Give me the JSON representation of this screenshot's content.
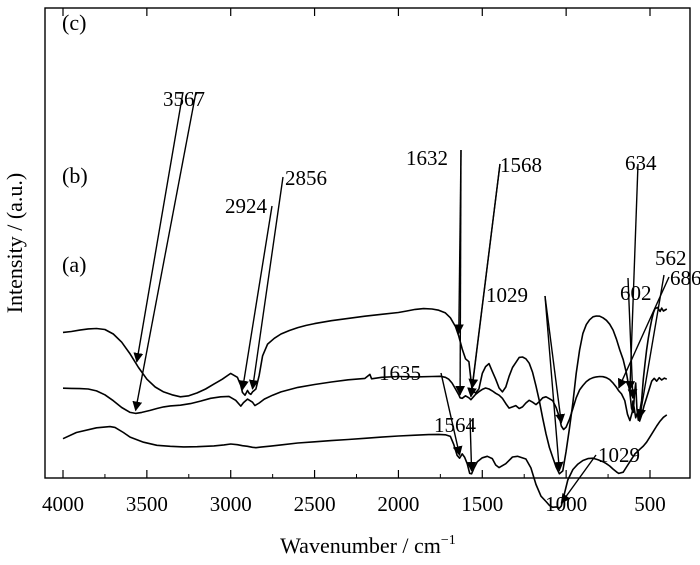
{
  "chart_data": {
    "type": "line",
    "xlabel": "Wavenumber / cm",
    "xlabel_sup": "−1",
    "ylabel": "Intensity / (a.u.)",
    "xlim": [
      4000,
      400
    ],
    "x_ticks": [
      4000,
      3500,
      3000,
      2500,
      2000,
      1500,
      1000,
      500
    ],
    "y_ticks_shown": false,
    "series": [
      {
        "name": "(a)",
        "offset": 0,
        "x": [
          4000,
          3920,
          3800,
          3720,
          3690,
          3640,
          3600,
          3520,
          3440,
          3360,
          3280,
          3200,
          3100,
          3040,
          3000,
          2960,
          2930,
          2900,
          2870,
          2850,
          2820,
          2760,
          2700,
          2600,
          2500,
          2400,
          2300,
          2200,
          2100,
          2000,
          1900,
          1820,
          1760,
          1720,
          1690,
          1670,
          1650,
          1635,
          1620,
          1605,
          1590,
          1575,
          1564,
          1550,
          1530,
          1500,
          1470,
          1440,
          1420,
          1400,
          1360,
          1320,
          1290,
          1240,
          1210,
          1180,
          1150,
          1120,
          1100,
          1080,
          1060,
          1040,
          1029,
          1010,
          990,
          960,
          930,
          900,
          870,
          840,
          810,
          780,
          760,
          740,
          720,
          700,
          686,
          660,
          640,
          620,
          600,
          590,
          575,
          560,
          540,
          520,
          500,
          480,
          460,
          440,
          420,
          400
        ],
        "y": [
          1.4,
          1.72,
          1.96,
          2.02,
          1.98,
          1.72,
          1.48,
          1.22,
          1.06,
          1.01,
          0.98,
          0.99,
          1.03,
          1.08,
          1.13,
          1.09,
          1.04,
          1.01,
          0.96,
          0.94,
          0.97,
          1.02,
          1.08,
          1.18,
          1.24,
          1.3,
          1.36,
          1.42,
          1.48,
          1.54,
          1.58,
          1.61,
          1.62,
          1.6,
          1.52,
          1.1,
          0.55,
          0.4,
          0.62,
          0.44,
          0.12,
          -0.38,
          -0.4,
          -0.12,
          0.22,
          0.42,
          0.5,
          0.38,
          0.05,
          -0.08,
          0.12,
          0.46,
          0.5,
          0.36,
          -0.1,
          -0.95,
          -1.55,
          -1.82,
          -2.02,
          -2.12,
          -2.1,
          -2.16,
          -2.05,
          -1.4,
          -0.72,
          -0.18,
          0.1,
          0.28,
          0.38,
          0.4,
          0.32,
          0.22,
          0.12,
          0.0,
          -0.16,
          -0.3,
          -0.38,
          -0.32,
          -0.05,
          0.22,
          0.48,
          0.62,
          0.74,
          0.86,
          1.02,
          1.22,
          1.5,
          1.78,
          2.05,
          2.3,
          2.5,
          2.62
        ]
      },
      {
        "name": "(b)",
        "offset": 3.55,
        "x": [
          4000,
          3950,
          3900,
          3850,
          3800,
          3750,
          3700,
          3650,
          3600,
          3567,
          3530,
          3480,
          3440,
          3400,
          3360,
          3300,
          3240,
          3180,
          3120,
          3060,
          3010,
          2970,
          2940,
          2924,
          2900,
          2870,
          2856,
          2830,
          2800,
          2750,
          2700,
          2600,
          2500,
          2400,
          2300,
          2200,
          2170,
          2160,
          2100,
          2000,
          1900,
          1800,
          1750,
          1720,
          1700,
          1680,
          1660,
          1640,
          1632,
          1620,
          1600,
          1580,
          1568,
          1555,
          1540,
          1520,
          1500,
          1480,
          1460,
          1440,
          1420,
          1400,
          1380,
          1360,
          1340,
          1320,
          1300,
          1280,
          1260,
          1240,
          1220,
          1200,
          1180,
          1160,
          1140,
          1120,
          1100,
          1080,
          1060,
          1040,
          1029,
          1015,
          1000,
          980,
          960,
          940,
          920,
          900,
          880,
          860,
          840,
          820,
          800,
          780,
          760,
          740,
          720,
          700,
          686,
          670,
          650,
          634,
          620,
          605,
          602,
          595,
          585,
          575,
          562,
          550,
          535,
          520,
          505,
          490,
          475,
          460,
          445,
          430,
          415,
          400
        ],
        "y": [
          0.44,
          0.43,
          0.42,
          0.4,
          0.3,
          0.1,
          -0.2,
          -0.55,
          -0.8,
          -0.85,
          -0.8,
          -0.7,
          -0.6,
          -0.52,
          -0.47,
          -0.43,
          -0.35,
          -0.22,
          -0.08,
          0.0,
          0.02,
          -0.18,
          -0.48,
          -0.3,
          -0.12,
          -0.28,
          -0.45,
          -0.32,
          -0.12,
          0.08,
          0.25,
          0.48,
          0.63,
          0.76,
          0.87,
          0.94,
          1.15,
          0.92,
          1.0,
          1.04,
          1.02,
          1.04,
          1.05,
          1.0,
          0.9,
          0.7,
          0.4,
          0.1,
          -0.05,
          -0.08,
          0.05,
          -0.05,
          -0.15,
          -0.02,
          0.12,
          0.26,
          0.38,
          0.45,
          0.4,
          0.3,
          0.18,
          0.08,
          -0.08,
          -0.35,
          -0.58,
          -0.52,
          -0.45,
          -0.6,
          -0.52,
          -0.32,
          -0.18,
          -0.28,
          -0.4,
          -0.25,
          -0.05,
          0.0,
          -0.1,
          -0.2,
          -0.55,
          -1.05,
          -1.5,
          -1.68,
          -1.56,
          -1.15,
          -0.6,
          -0.05,
          0.35,
          0.58,
          0.78,
          0.9,
          0.98,
          1.02,
          1.04,
          1.03,
          0.98,
          0.88,
          0.7,
          0.48,
          0.3,
          0.15,
          -0.2,
          -0.9,
          -1.22,
          -0.75,
          -0.22,
          -0.55,
          -1.08,
          -0.8,
          -1.25,
          -0.95,
          -0.45,
          -0.05,
          0.38,
          0.8,
          0.95,
          0.8,
          0.98,
          0.86,
          0.96,
          0.9
        ]
      },
      {
        "name": "(c)",
        "offset": 6.55,
        "x": [
          4000,
          3950,
          3900,
          3850,
          3800,
          3750,
          3700,
          3650,
          3600,
          3550,
          3500,
          3450,
          3400,
          3350,
          3300,
          3250,
          3200,
          3150,
          3100,
          3050,
          3000,
          2960,
          2940,
          2930,
          2915,
          2900,
          2890,
          2880,
          2870,
          2850,
          2830,
          2810,
          2780,
          2740,
          2700,
          2650,
          2600,
          2550,
          2500,
          2400,
          2300,
          2200,
          2100,
          2000,
          1950,
          1900,
          1850,
          1800,
          1760,
          1720,
          1690,
          1660,
          1640,
          1620,
          1600,
          1580,
          1560,
          1540,
          1520,
          1500,
          1480,
          1460,
          1440,
          1420,
          1400,
          1380,
          1360,
          1340,
          1320,
          1300,
          1280,
          1260,
          1240,
          1220,
          1200,
          1180,
          1160,
          1140,
          1120,
          1100,
          1080,
          1060,
          1040,
          1020,
          1000,
          980,
          960,
          940,
          920,
          900,
          880,
          860,
          840,
          820,
          800,
          780,
          760,
          740,
          720,
          700,
          680,
          660,
          640,
          620,
          610,
          600,
          592,
          585,
          578,
          570,
          562,
          550,
          540,
          530,
          520,
          510,
          500,
          490,
          480,
          470,
          455,
          440,
          430,
          420,
          410,
          400
        ],
        "y": [
          0.3,
          0.35,
          0.42,
          0.48,
          0.5,
          0.45,
          0.22,
          -0.2,
          -0.8,
          -1.5,
          -2.1,
          -2.5,
          -2.75,
          -2.9,
          -3.0,
          -2.95,
          -2.8,
          -2.6,
          -2.35,
          -2.1,
          -1.8,
          -2.0,
          -2.42,
          -2.78,
          -2.92,
          -2.68,
          -2.82,
          -2.88,
          -2.75,
          -2.6,
          -1.9,
          -0.9,
          -0.3,
          0.0,
          0.22,
          0.4,
          0.55,
          0.66,
          0.75,
          0.9,
          1.02,
          1.13,
          1.23,
          1.32,
          1.4,
          1.48,
          1.52,
          1.5,
          1.44,
          1.3,
          1.05,
          0.6,
          0.1,
          -0.55,
          -1.05,
          -1.2,
          -2.7,
          -2.8,
          -2.6,
          -1.8,
          -1.45,
          -1.3,
          -1.7,
          -2.1,
          -2.55,
          -2.75,
          -2.5,
          -1.95,
          -1.5,
          -1.25,
          -0.98,
          -0.96,
          -1.05,
          -1.28,
          -1.75,
          -2.45,
          -3.2,
          -4.1,
          -4.9,
          -5.6,
          -6.1,
          -6.6,
          -6.95,
          -6.8,
          -5.8,
          -4.6,
          -3.3,
          -1.8,
          -0.6,
          0.25,
          0.7,
          0.95,
          1.1,
          1.14,
          1.13,
          1.05,
          0.92,
          0.72,
          0.42,
          -0.05,
          -0.6,
          -1.1,
          -1.8,
          -2.8,
          -3.6,
          -3.8,
          -2.8,
          -2.3,
          -3.6,
          -4.2,
          -3.8,
          -3.2,
          -2.1,
          -1.3,
          -0.6,
          0.0,
          0.5,
          0.95,
          1.3,
          1.52,
          1.58,
          1.38,
          1.55,
          1.4,
          1.45,
          1.5
        ]
      }
    ],
    "panel_labels": [
      {
        "text": "(a)",
        "series": "(a)"
      },
      {
        "text": "(b)",
        "series": "(b)"
      },
      {
        "text": "(c)",
        "series": "(c)"
      }
    ],
    "annotations": [
      {
        "label": "3567",
        "targets": [
          {
            "series": "(c)",
            "x": 3560
          },
          {
            "series": "(b)",
            "x": 3567
          }
        ]
      },
      {
        "label": "2924",
        "targets": [
          {
            "series": "(c)",
            "x": 2930
          }
        ]
      },
      {
        "label": "2856",
        "targets": [
          {
            "series": "(c)",
            "x": 2870
          }
        ]
      },
      {
        "label": "1632",
        "targets": [
          {
            "series": "(c)",
            "x": 1640
          },
          {
            "series": "(b)",
            "x": 1632
          }
        ]
      },
      {
        "label": "1568",
        "targets": [
          {
            "series": "(c)",
            "x": 1560
          },
          {
            "series": "(b)",
            "x": 1568
          }
        ]
      },
      {
        "label": "634",
        "targets": [
          {
            "series": "(c)",
            "x": 620
          }
        ]
      },
      {
        "label": "686",
        "targets": [
          {
            "series": "(b)",
            "x": 686
          }
        ]
      },
      {
        "label": "562",
        "targets": [
          {
            "series": "(b)",
            "x": 562
          }
        ]
      },
      {
        "label": "602",
        "targets": [
          {
            "series": "(b)",
            "x": 602
          }
        ]
      },
      {
        "label": "1029",
        "targets": [
          {
            "series": "(c)",
            "x": 1040
          },
          {
            "series": "(b)",
            "x": 1029
          }
        ]
      },
      {
        "label": "1635",
        "targets": [
          {
            "series": "(a)",
            "x": 1635
          }
        ]
      },
      {
        "label": "1564",
        "targets": [
          {
            "series": "(a)",
            "x": 1564
          }
        ]
      },
      {
        "label": "1029",
        "targets": [
          {
            "series": "(a)",
            "x": 1029
          }
        ]
      }
    ]
  }
}
